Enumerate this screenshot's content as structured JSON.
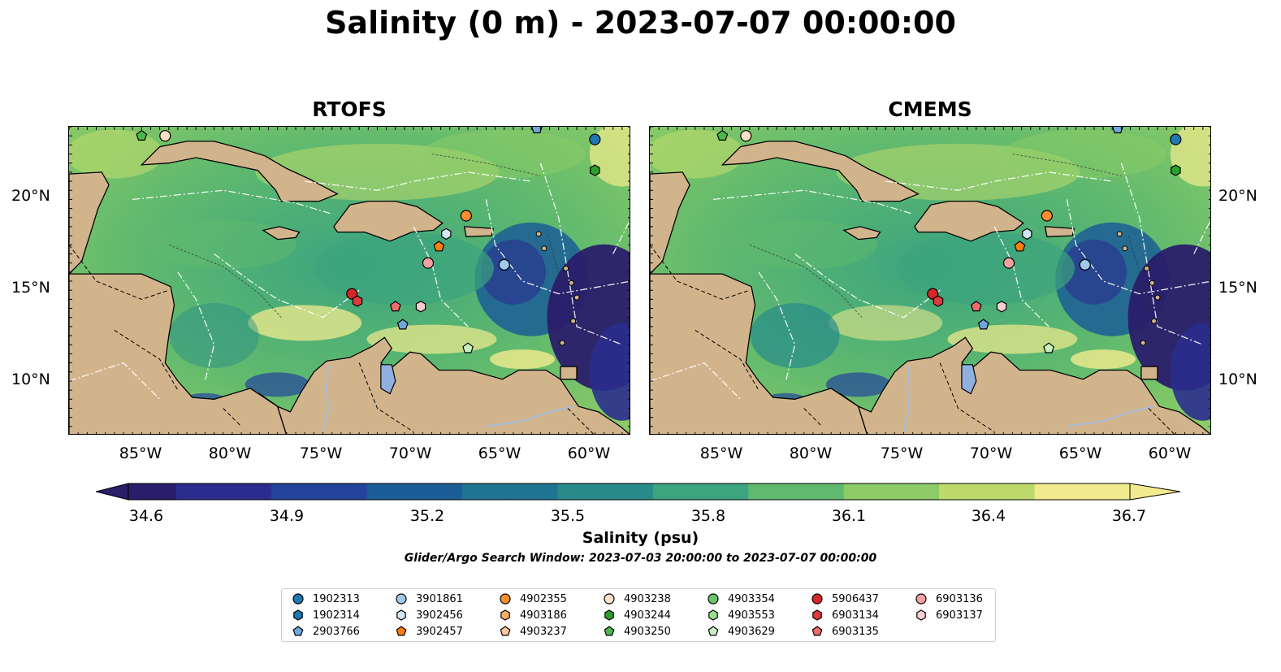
{
  "title": "Salinity (0 m) - 2023-07-07 00:00:00",
  "panels": [
    {
      "title": "RTOFS"
    },
    {
      "title": "CMEMS"
    }
  ],
  "lat_labels": [
    "20°N",
    "15°N",
    "10°N"
  ],
  "lon_labels": [
    "85°W",
    "80°W",
    "75°W",
    "70°W",
    "65°W",
    "60°W"
  ],
  "colorbar": {
    "label": "Salinity (psu)",
    "ticks": [
      "34.6",
      "34.9",
      "35.2",
      "35.5",
      "35.8",
      "36.1",
      "36.4",
      "36.7"
    ],
    "min": 34.6,
    "max": 36.7,
    "colormap": [
      "#2a1d6a",
      "#2b2d8e",
      "#24449b",
      "#1b5d97",
      "#1f7591",
      "#288b8a",
      "#3ca47e",
      "#5fb96e",
      "#8ccb66",
      "#bddb6c",
      "#f2eb8e"
    ]
  },
  "search_window": "Glider/Argo Search Window: 2023-07-03 20:00:00 to 2023-07-07 00:00:00",
  "land_color": "#d2b48c",
  "legend": [
    {
      "id": "1902313",
      "marker": "circle",
      "color": "#1f77b4"
    },
    {
      "id": "1902314",
      "marker": "hexagon",
      "color": "#1f77b4"
    },
    {
      "id": "2903766",
      "marker": "pentagon",
      "color": "#6fa8dc"
    },
    {
      "id": "3901861",
      "marker": "circle",
      "color": "#9ec9ea"
    },
    {
      "id": "3902456",
      "marker": "hexagon",
      "color": "#cfe6f7"
    },
    {
      "id": "3902457",
      "marker": "pentagon",
      "color": "#ff7f0e"
    },
    {
      "id": "4902355",
      "marker": "circle",
      "color": "#ff8c2e"
    },
    {
      "id": "4903186",
      "marker": "hexagon",
      "color": "#ffad66"
    },
    {
      "id": "4903237",
      "marker": "pentagon",
      "color": "#ffc99a"
    },
    {
      "id": "4903238",
      "marker": "circle",
      "color": "#fde0c5"
    },
    {
      "id": "4903244",
      "marker": "hexagon",
      "color": "#2ca02c"
    },
    {
      "id": "4903250",
      "marker": "pentagon",
      "color": "#4cb84c"
    },
    {
      "id": "4903354",
      "marker": "circle",
      "color": "#6cc46c"
    },
    {
      "id": "4903553",
      "marker": "hexagon",
      "color": "#98df8a"
    },
    {
      "id": "4903629",
      "marker": "pentagon",
      "color": "#c7f0c0"
    },
    {
      "id": "5906437",
      "marker": "circle",
      "color": "#d62728"
    },
    {
      "id": "6903134",
      "marker": "hexagon",
      "color": "#e0393b"
    },
    {
      "id": "6903135",
      "marker": "pentagon",
      "color": "#ee6b6b"
    },
    {
      "id": "6903136",
      "marker": "circle",
      "color": "#f4a0a0"
    },
    {
      "id": "6903137",
      "marker": "hexagon",
      "color": "#fbd0d0"
    }
  ],
  "platform_positions": [
    {
      "id": "1902313",
      "lon": -60.0,
      "lat": 23.3
    },
    {
      "id": "4903244",
      "lon": -60.0,
      "lat": 21.6
    },
    {
      "id": "2903766",
      "lon": -63.2,
      "lat": 23.9
    },
    {
      "id": "4903250",
      "lon": -85.0,
      "lat": 23.5
    },
    {
      "id": "4903238",
      "lon": -83.7,
      "lat": 23.5
    },
    {
      "id": "4902355",
      "lon": -67.1,
      "lat": 19.1
    },
    {
      "id": "3902456",
      "lon": -68.2,
      "lat": 18.1
    },
    {
      "id": "3902457",
      "lon": -68.6,
      "lat": 17.4
    },
    {
      "id": "6903136",
      "lon": -69.2,
      "lat": 16.5
    },
    {
      "id": "3901861",
      "lon": -65.0,
      "lat": 16.4
    },
    {
      "id": "5906437",
      "lon": -73.4,
      "lat": 14.8
    },
    {
      "id": "6903134",
      "lon": -73.1,
      "lat": 14.4
    },
    {
      "id": "6903135",
      "lon": -71.0,
      "lat": 14.1
    },
    {
      "id": "6903137",
      "lon": -69.6,
      "lat": 14.1
    },
    {
      "id": "2903766",
      "lon": -70.6,
      "lat": 13.1
    },
    {
      "id": "4903629",
      "lon": -67.0,
      "lat": 11.8
    }
  ]
}
